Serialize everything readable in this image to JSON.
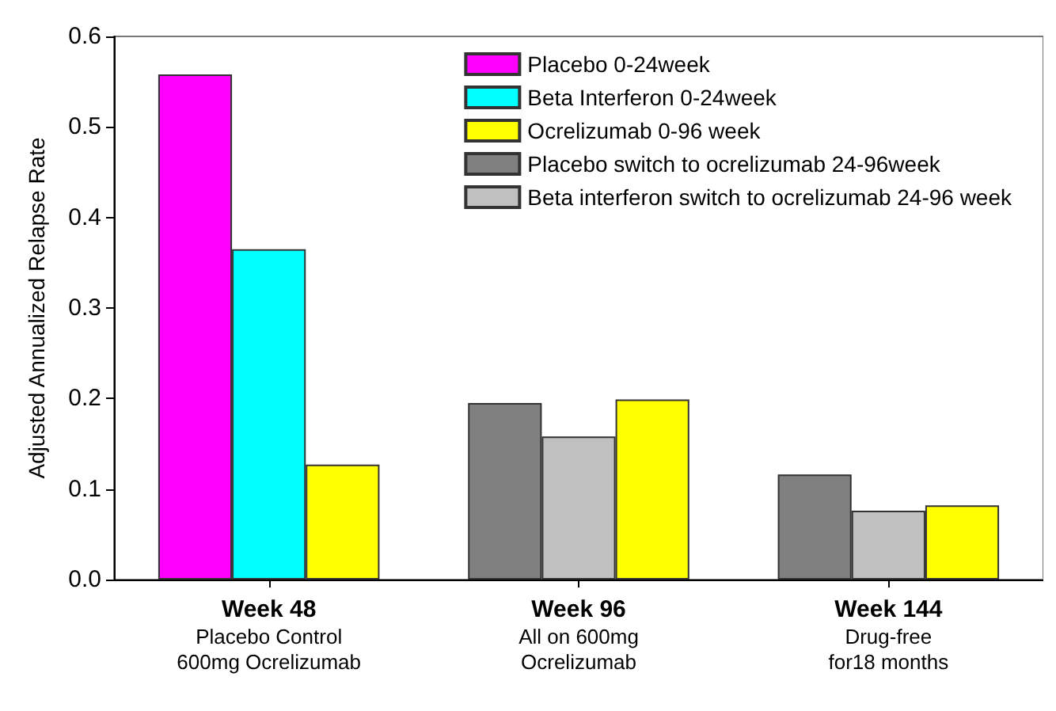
{
  "chart_data": {
    "type": "bar",
    "ylabel": "Adjusted Annualized Relapse Rate",
    "categories": [
      "Week 48\nPlacebo Control\n600mg Ocrelizumab",
      "Week 96\nAll on 600mg\nOcrelizumab",
      "Week 144\nDrug-free\nfor18 months"
    ],
    "series": [
      {
        "name": "Placebo 0-24week",
        "color": "#ff00ff",
        "values": [
          0.558,
          null,
          null
        ]
      },
      {
        "name": "Beta Interferon 0-24week",
        "color": "#00ffff",
        "values": [
          0.365,
          null,
          null
        ]
      },
      {
        "name": "Ocrelizumab 0-96 week",
        "color": "#ffff00",
        "values": [
          0.127,
          0.199,
          0.082
        ]
      },
      {
        "name": "Placebo switch to ocrelizumab 24-96week",
        "color": "#808080",
        "values": [
          null,
          0.195,
          0.116
        ]
      },
      {
        "name": "Beta interferon switch to ocrelizumab 24-96 week",
        "color": "#c0c0c0",
        "values": [
          null,
          0.158,
          0.076
        ]
      }
    ],
    "ylim": [
      0,
      0.6
    ],
    "yticks": [
      {
        "value": 0,
        "label": "0.0"
      },
      0.1,
      0.2,
      0.3,
      0.4,
      0.5,
      0.6
    ],
    "grid": false,
    "legend": "top right"
  }
}
